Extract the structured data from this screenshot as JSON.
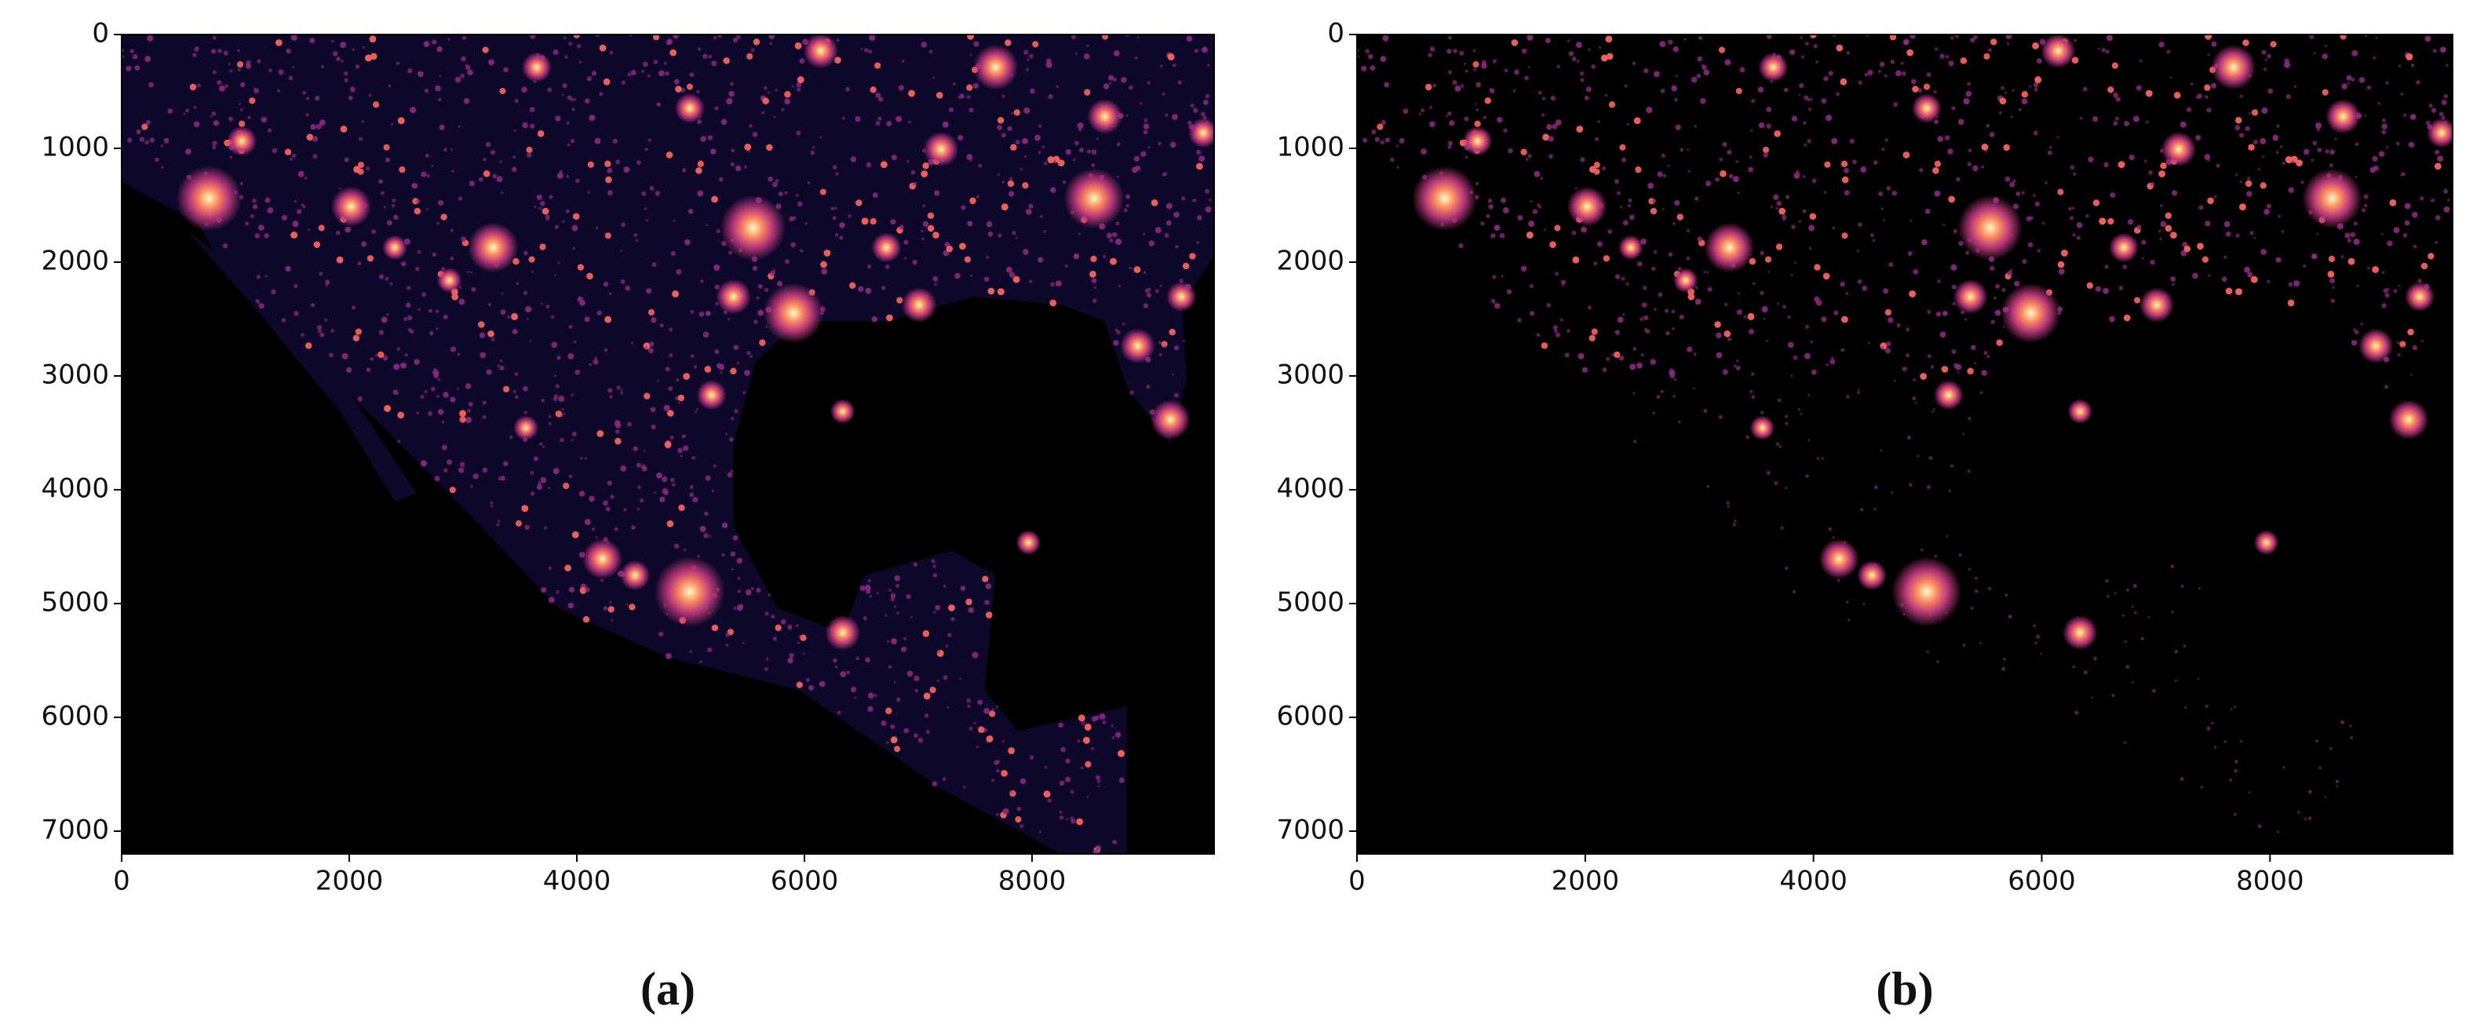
{
  "chart_data": [
    {
      "type": "image",
      "xlim": [
        0,
        9600
      ],
      "ylim": [
        0,
        7200
      ],
      "y_inverted": true,
      "xticks": [
        0,
        2000,
        4000,
        6000,
        8000
      ],
      "yticks": [
        0,
        1000,
        2000,
        3000,
        4000,
        5000,
        6000,
        7000
      ],
      "land_color": "#0d0829",
      "caption": "(a)"
    },
    {
      "type": "image",
      "xlim": [
        0,
        9600
      ],
      "ylim": [
        0,
        7200
      ],
      "y_inverted": true,
      "xticks": [
        0,
        2000,
        4000,
        6000,
        8000
      ],
      "yticks": [
        0,
        1000,
        2000,
        3000,
        4000,
        5000,
        6000,
        7000
      ],
      "land_color": "#000000",
      "caption": "(b)"
    }
  ]
}
